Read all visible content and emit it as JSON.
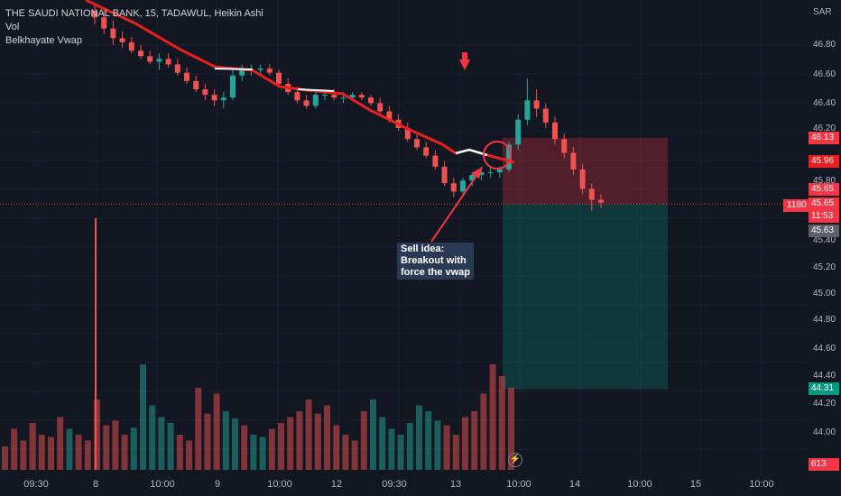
{
  "legend": {
    "title": "THE SAUDI NATIONAL BANK, 15, TADAWUL, Heikin Ashi",
    "indicator1": "Vol",
    "indicator2": "Belkhayate Vwap"
  },
  "price_axis": {
    "currency": "SAR",
    "ticks": [
      "46.80",
      "46.60",
      "46.40",
      "46.20",
      "45.80",
      "45.40",
      "45.20",
      "45.00",
      "44.80",
      "44.60",
      "44.40",
      "44.20",
      "44.00"
    ],
    "labels": {
      "top_box": "46.13",
      "vwap": "45.96",
      "last1": "45.65",
      "last2": "45.65",
      "countdown": "11:53",
      "grey": "45.63",
      "target": "44.31",
      "vol": "613"
    }
  },
  "volume_badge": "1180",
  "time_axis": {
    "labels": [
      "09:30",
      "8",
      "10:00",
      "9",
      "10:00",
      "12",
      "09:30",
      "13",
      "10:00",
      "14",
      "10:00",
      "15",
      "10:00"
    ]
  },
  "annotation": {
    "line1": "Sell idea:",
    "line2": "Breakout with",
    "line3": "force the vwap"
  },
  "colors": {
    "bg": "#131722",
    "up": "#26a69a",
    "down": "#ef5350",
    "vwap": "#e91e1e",
    "grid": "#1e222d"
  },
  "chart_data": {
    "type": "candlestick",
    "title": "THE SAUDI NATIONAL BANK, 15, TADAWUL, Heikin Ashi",
    "ylim": [
      43.85,
      47.0
    ],
    "trade": {
      "entry": 46.13,
      "stop_zone_bottom": 45.65,
      "target": 44.31
    },
    "last_price": 45.65,
    "candles": [
      [
        47.05,
        47.1,
        46.95,
        47.0
      ],
      [
        47.0,
        47.05,
        46.88,
        46.92
      ],
      [
        46.92,
        46.98,
        46.8,
        46.85
      ],
      [
        46.85,
        46.9,
        46.78,
        46.82
      ],
      [
        46.82,
        46.86,
        46.74,
        46.76
      ],
      [
        46.76,
        46.8,
        46.7,
        46.72
      ],
      [
        46.72,
        46.76,
        46.66,
        46.68
      ],
      [
        46.68,
        46.74,
        46.62,
        46.7
      ],
      [
        46.7,
        46.74,
        46.64,
        46.66
      ],
      [
        46.66,
        46.7,
        46.58,
        46.6
      ],
      [
        46.6,
        46.64,
        46.52,
        46.54
      ],
      [
        46.54,
        46.58,
        46.46,
        46.48
      ],
      [
        46.48,
        46.52,
        46.4,
        46.44
      ],
      [
        46.44,
        46.48,
        46.36,
        46.4
      ],
      [
        46.4,
        46.46,
        46.34,
        46.42
      ],
      [
        46.42,
        46.62,
        46.4,
        46.58
      ],
      [
        46.58,
        46.66,
        46.54,
        46.62
      ],
      [
        46.62,
        46.66,
        46.58,
        46.62
      ],
      [
        46.62,
        46.66,
        46.58,
        46.63
      ],
      [
        46.63,
        46.66,
        46.58,
        46.6
      ],
      [
        46.6,
        46.62,
        46.5,
        46.52
      ],
      [
        46.52,
        46.56,
        46.44,
        46.46
      ],
      [
        46.46,
        46.5,
        46.38,
        46.4
      ],
      [
        46.4,
        46.44,
        46.34,
        46.36
      ],
      [
        46.36,
        46.46,
        46.34,
        46.44
      ],
      [
        46.44,
        46.48,
        46.4,
        46.44
      ],
      [
        46.44,
        46.48,
        46.4,
        46.42
      ],
      [
        46.42,
        46.46,
        46.38,
        46.42
      ],
      [
        46.42,
        46.46,
        46.4,
        46.44
      ],
      [
        46.44,
        46.46,
        46.4,
        46.42
      ],
      [
        46.42,
        46.44,
        46.36,
        46.38
      ],
      [
        46.38,
        46.42,
        46.3,
        46.32
      ],
      [
        46.32,
        46.36,
        46.24,
        46.26
      ],
      [
        46.26,
        46.3,
        46.18,
        46.2
      ],
      [
        46.2,
        46.24,
        46.1,
        46.12
      ],
      [
        46.12,
        46.16,
        46.04,
        46.06
      ],
      [
        46.06,
        46.1,
        45.98,
        46.0
      ],
      [
        46.0,
        46.04,
        45.9,
        45.92
      ],
      [
        45.92,
        45.96,
        45.78,
        45.8
      ],
      [
        45.8,
        45.84,
        45.7,
        45.74
      ],
      [
        45.74,
        45.84,
        45.7,
        45.82
      ],
      [
        45.82,
        45.88,
        45.78,
        45.86
      ],
      [
        45.86,
        45.92,
        45.82,
        45.88
      ],
      [
        45.88,
        45.92,
        45.84,
        45.88
      ],
      [
        45.88,
        45.92,
        45.84,
        45.9
      ],
      [
        45.9,
        46.1,
        45.88,
        46.08
      ],
      [
        46.08,
        46.3,
        46.04,
        46.26
      ],
      [
        46.26,
        46.56,
        46.22,
        46.4
      ],
      [
        46.4,
        46.48,
        46.28,
        46.34
      ],
      [
        46.34,
        46.38,
        46.2,
        46.24
      ],
      [
        46.24,
        46.28,
        46.08,
        46.12
      ],
      [
        46.12,
        46.16,
        45.98,
        46.02
      ],
      [
        46.02,
        46.06,
        45.86,
        45.9
      ],
      [
        45.9,
        45.94,
        45.72,
        45.76
      ],
      [
        45.76,
        45.8,
        45.6,
        45.68
      ],
      [
        45.68,
        45.72,
        45.62,
        45.66
      ]
    ],
    "volumes": [
      20,
      35,
      25,
      40,
      30,
      28,
      45,
      35,
      30,
      25,
      60,
      38,
      42,
      30,
      36,
      90,
      55,
      45,
      40,
      30,
      25,
      70,
      48,
      65,
      50,
      44,
      38,
      30,
      28,
      35,
      40,
      45,
      50,
      60,
      48,
      55,
      38,
      30,
      25,
      50,
      60,
      45,
      35,
      30,
      40,
      55,
      50,
      42,
      38,
      30,
      45,
      50,
      65,
      90,
      80,
      70
    ]
  }
}
